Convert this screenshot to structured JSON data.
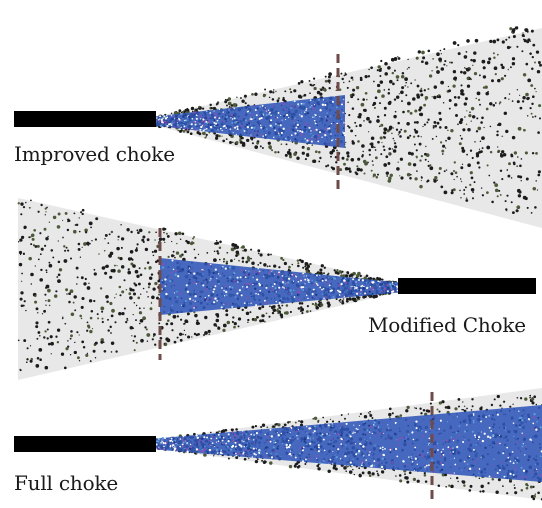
{
  "labels": {
    "improved": "Improved choke",
    "modified": "Modified Choke",
    "full": "Full choke"
  },
  "colors": {
    "barrel": "#000000",
    "core": "#2f56b8",
    "core_accent": "#8a4fb0",
    "pellet": "#1c1c1c",
    "pellet_olive": "#4d5a3a",
    "haze": "#d6d6d6",
    "marker": "#6e4a48"
  },
  "patterns": [
    {
      "name": "Improved choke",
      "direction": "right",
      "spread": "wide",
      "core": "short"
    },
    {
      "name": "Modified Choke",
      "direction": "left",
      "spread": "medium",
      "core": "medium"
    },
    {
      "name": "Full choke",
      "direction": "right",
      "spread": "narrow",
      "core": "long"
    }
  ]
}
